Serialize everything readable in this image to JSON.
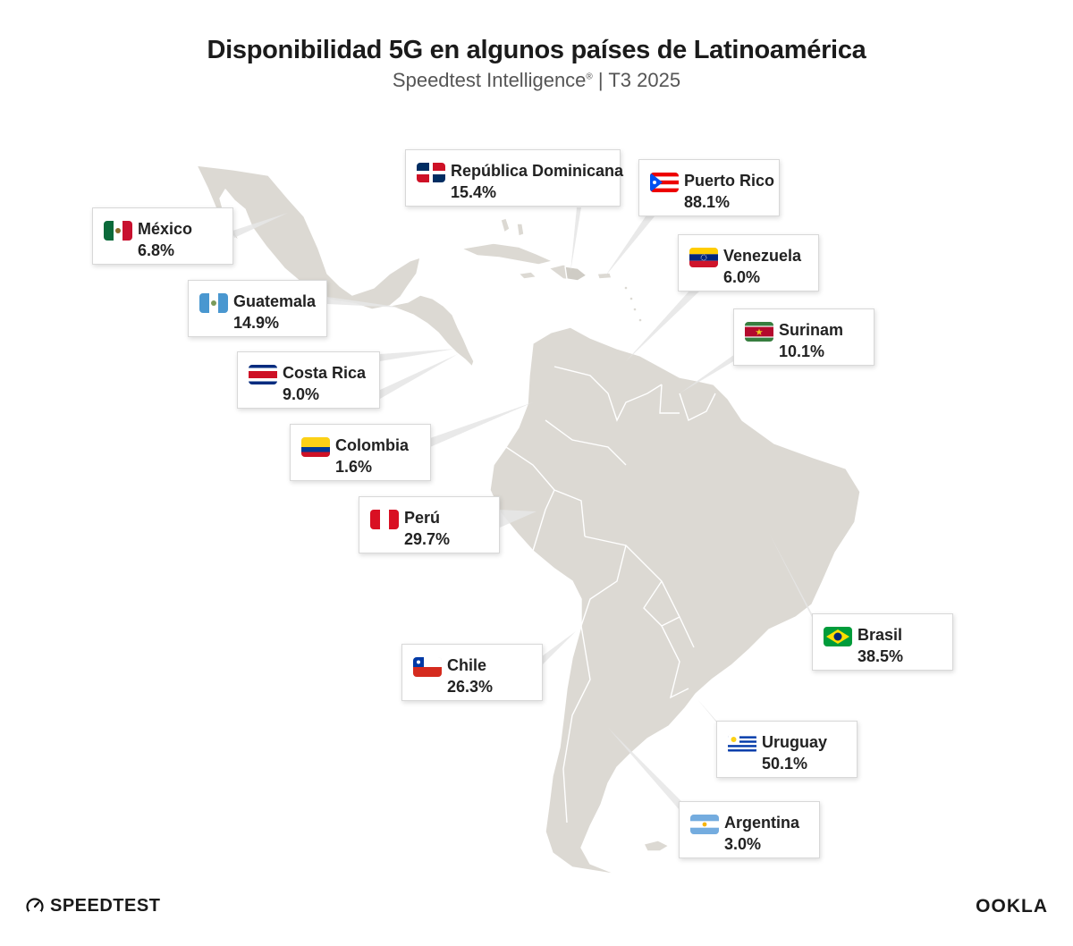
{
  "header": {
    "title": "Disponibilidad 5G en algunos países de Latinoamérica",
    "subtitle_main": "Speedtest Intelligence",
    "subtitle_reg": "®",
    "subtitle_rest": " | T3 2025"
  },
  "countries": [
    {
      "id": "mexico",
      "name": "México",
      "value": "6.8%",
      "flag": "mexico-flag-icon"
    },
    {
      "id": "guatemala",
      "name": "Guatemala",
      "value": "14.9%",
      "flag": "guatemala-flag-icon"
    },
    {
      "id": "costa_rica",
      "name": "Costa Rica",
      "value": "9.0%",
      "flag": "costa-rica-flag-icon"
    },
    {
      "id": "colombia",
      "name": "Colombia",
      "value": "1.6%",
      "flag": "colombia-flag-icon"
    },
    {
      "id": "peru",
      "name": "Perú",
      "value": "29.7%",
      "flag": "peru-flag-icon"
    },
    {
      "id": "chile",
      "name": "Chile",
      "value": "26.3%",
      "flag": "chile-flag-icon"
    },
    {
      "id": "rep_dominicana",
      "name": "República Dominicana",
      "value": "15.4%",
      "flag": "dominican-republic-flag-icon"
    },
    {
      "id": "puerto_rico",
      "name": "Puerto Rico",
      "value": "88.1%",
      "flag": "puerto-rico-flag-icon"
    },
    {
      "id": "venezuela",
      "name": "Venezuela",
      "value": "6.0%",
      "flag": "venezuela-flag-icon"
    },
    {
      "id": "surinam",
      "name": "Surinam",
      "value": "10.1%",
      "flag": "suriname-flag-icon"
    },
    {
      "id": "brasil",
      "name": "Brasil",
      "value": "38.5%",
      "flag": "brazil-flag-icon"
    },
    {
      "id": "uruguay",
      "name": "Uruguay",
      "value": "50.1%",
      "flag": "uruguay-flag-icon"
    },
    {
      "id": "argentina",
      "name": "Argentina",
      "value": "3.0%",
      "flag": "argentina-flag-icon"
    }
  ],
  "footer": {
    "speedtest_logo": "SPEEDTEST",
    "ookla_logo": "OOKLA"
  },
  "colors": {
    "land": "#dcd9d3",
    "border": "#ffffff",
    "leader": "#e2e2e2"
  }
}
